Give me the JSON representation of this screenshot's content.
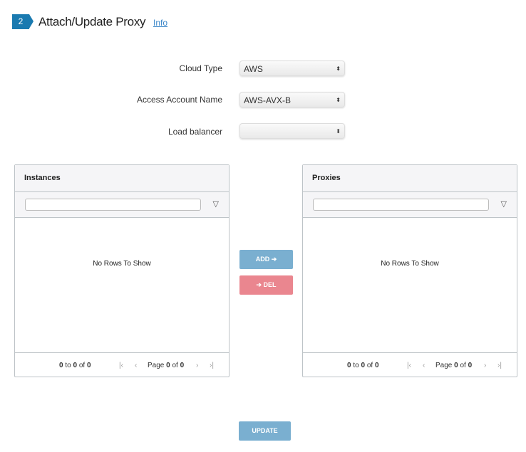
{
  "header": {
    "step": "2",
    "title": "Attach/Update Proxy",
    "info_link": "Info"
  },
  "form": {
    "cloud_type": {
      "label": "Cloud Type",
      "value": "AWS"
    },
    "access_account": {
      "label": "Access Account Name",
      "value": "AWS-AVX-B"
    },
    "load_balancer": {
      "label": "Load balancer",
      "value": ""
    }
  },
  "instances": {
    "title": "Instances",
    "filter_value": "",
    "empty": "No Rows To Show",
    "from": "0",
    "to_word": "to",
    "to": "0",
    "of_word": "of",
    "total": "0",
    "page_word": "Page",
    "page": "0",
    "pages": "0"
  },
  "proxies": {
    "title": "Proxies",
    "filter_value": "",
    "empty": "No Rows To Show",
    "from": "0",
    "to_word": "to",
    "to": "0",
    "of_word": "of",
    "total": "0",
    "page_word": "Page",
    "page": "0",
    "pages": "0"
  },
  "buttons": {
    "add": "ADD ➔",
    "del": "➔ DEL",
    "update": "UPDATE"
  },
  "colors": {
    "step": "#1a7ab0",
    "add": "#7aafd0",
    "del": "#ea868f",
    "update": "#7aafd0"
  }
}
